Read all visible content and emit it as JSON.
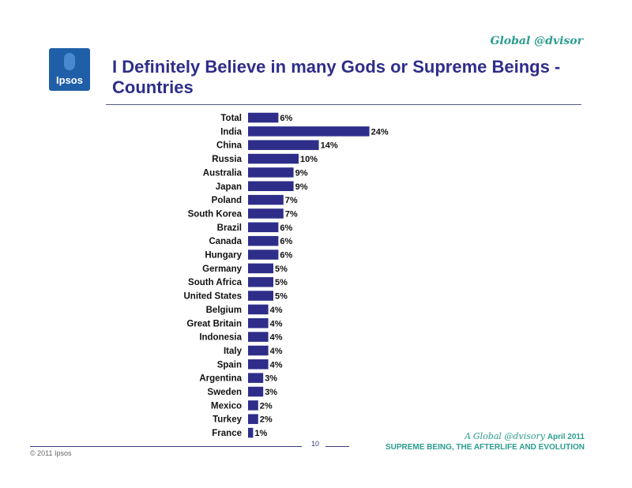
{
  "header": {
    "brand_tag": "Global @dvisor",
    "logo_text": "Ipsos",
    "title_line1": "I Definitely Believe in many Gods or Supreme Beings -",
    "title_line2": "Countries"
  },
  "chart_data": {
    "type": "bar",
    "orientation": "horizontal",
    "categories": [
      "Total",
      "India",
      "China",
      "Russia",
      "Australia",
      "Japan",
      "Poland",
      "South Korea",
      "Brazil",
      "Canada",
      "Hungary",
      "Germany",
      "South Africa",
      "United States",
      "Belgium",
      "Great Britain",
      "Indonesia",
      "Italy",
      "Spain",
      "Argentina",
      "Sweden",
      "Mexico",
      "Turkey",
      "France"
    ],
    "values": [
      6,
      24,
      14,
      10,
      9,
      9,
      7,
      7,
      6,
      6,
      6,
      5,
      5,
      5,
      4,
      4,
      4,
      4,
      4,
      3,
      3,
      2,
      2,
      1
    ],
    "value_labels": [
      "6%",
      "24%",
      "14%",
      "10%",
      "9%",
      "9%",
      "7%",
      "7%",
      "6%",
      "6%",
      "6%",
      "5%",
      "5%",
      "5%",
      "4%",
      "4%",
      "4%",
      "4%",
      "4%",
      "3%",
      "3%",
      "2%",
      "2%",
      "1%"
    ],
    "unit": "%",
    "bar_color": "#2e2e8a",
    "grid": false,
    "legend": "none"
  },
  "footer": {
    "page_number": "10",
    "copyright": "© 2011 Ipsos",
    "brand_prefix": "A",
    "brand_italic": "Global @dvisory",
    "date": "April 2011",
    "subtitle": "SUPREME BEING, THE AFTERLIFE AND EVOLUTION"
  }
}
